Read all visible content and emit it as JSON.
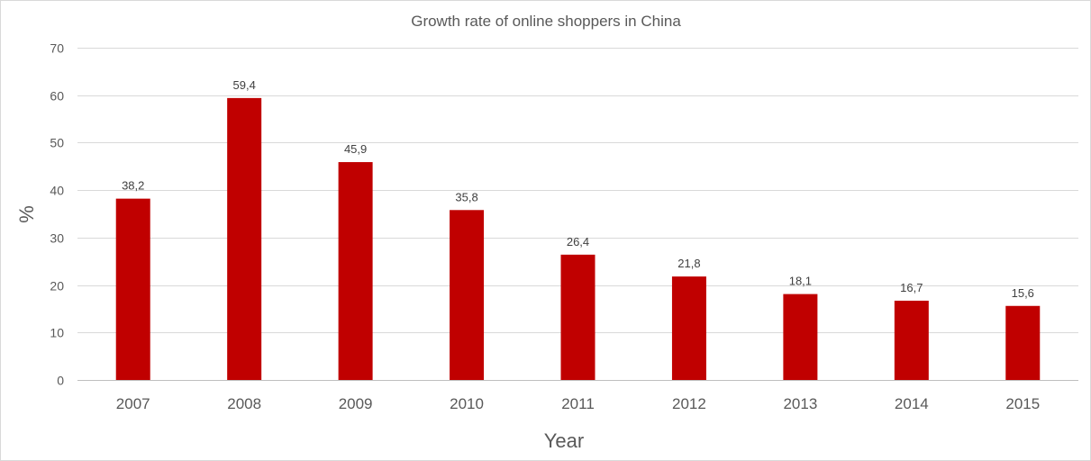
{
  "chart_data": {
    "type": "bar",
    "title": "Growth rate of online shoppers in China",
    "xlabel": "Year",
    "ylabel": "%",
    "categories": [
      "2007",
      "2008",
      "2009",
      "2010",
      "2011",
      "2012",
      "2013",
      "2014",
      "2015"
    ],
    "values": [
      38.2,
      59.4,
      45.9,
      35.8,
      26.4,
      21.8,
      18.1,
      16.7,
      15.6
    ],
    "data_labels": [
      "38,2",
      "59,4",
      "45,9",
      "35,8",
      "26,4",
      "21,8",
      "18,1",
      "16,7",
      "15,6"
    ],
    "ylim": [
      0,
      70
    ],
    "yticks": [
      0,
      10,
      20,
      30,
      40,
      50,
      60,
      70
    ],
    "grid": true,
    "legend": "none",
    "bar_color": "#c00000"
  }
}
